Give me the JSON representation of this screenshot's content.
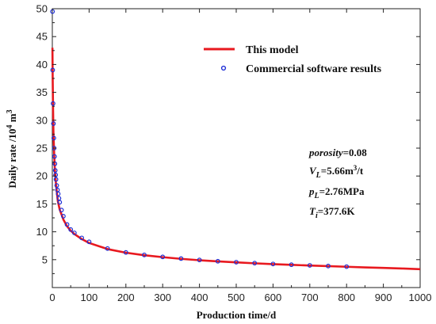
{
  "chart_data": {
    "type": "line",
    "xlabel": "Production time/d",
    "ylabel": {
      "main": "Daily rate /10",
      "sup": "4",
      "mid": " m",
      "sup2": "3"
    },
    "xlim": [
      0,
      1000
    ],
    "ylim": [
      0,
      50
    ],
    "xticks": [
      0,
      100,
      200,
      300,
      400,
      500,
      600,
      700,
      800,
      900,
      1000
    ],
    "yticks": [
      5,
      10,
      15,
      20,
      25,
      30,
      35,
      40,
      45,
      50
    ],
    "grid": false,
    "legend_position": "top-right",
    "series": [
      {
        "name": "This model",
        "style": "line",
        "color": "#e8191f",
        "x": [
          0.3,
          1,
          2,
          3,
          5,
          7,
          10,
          15,
          20,
          30,
          40,
          50,
          60,
          80,
          100,
          150,
          200,
          250,
          300,
          350,
          400,
          450,
          500,
          550,
          600,
          650,
          700,
          750,
          800,
          850,
          900,
          950,
          1000
        ],
        "y": [
          43.0,
          37.5,
          32.0,
          28.0,
          24.0,
          21.0,
          18.5,
          15.5,
          14.0,
          12.2,
          11.0,
          10.2,
          9.6,
          8.7,
          8.0,
          6.9,
          6.25,
          5.8,
          5.45,
          5.15,
          4.9,
          4.7,
          4.52,
          4.35,
          4.2,
          4.07,
          3.95,
          3.84,
          3.73,
          3.62,
          3.52,
          3.42,
          3.3
        ]
      },
      {
        "name": "Commercial software results",
        "style": "markers",
        "color": "#1f2fd6",
        "x": [
          0.5,
          1,
          2,
          3,
          4,
          5,
          6,
          7,
          8,
          9,
          10,
          12,
          14,
          16,
          18,
          20,
          25,
          30,
          40,
          50,
          60,
          80,
          100,
          150,
          200,
          250,
          300,
          350,
          400,
          450,
          500,
          550,
          600,
          650,
          700,
          750,
          800
        ],
        "y": [
          49.5,
          39.0,
          33.0,
          29.4,
          26.8,
          25.0,
          23.5,
          22.2,
          21.0,
          20.2,
          19.4,
          18.3,
          17.5,
          16.8,
          16.0,
          15.3,
          13.9,
          12.8,
          11.3,
          10.4,
          9.8,
          8.9,
          8.2,
          7.0,
          6.3,
          5.85,
          5.5,
          5.2,
          4.95,
          4.72,
          4.55,
          4.38,
          4.23,
          4.1,
          3.98,
          3.86,
          3.75
        ]
      }
    ],
    "annotations": [
      {
        "key": "porosity",
        "base": "porosity",
        "sub": "",
        "value": "=0.08"
      },
      {
        "key": "VL",
        "base": "V",
        "sub": "L",
        "value": "=5.66m",
        "sup": "3",
        "tail": "/t"
      },
      {
        "key": "pL",
        "base": "p",
        "sub": "L",
        "value": "=2.76MPa"
      },
      {
        "key": "Ti",
        "base": "T",
        "sub": "i",
        "value": "=377.6K"
      }
    ]
  }
}
